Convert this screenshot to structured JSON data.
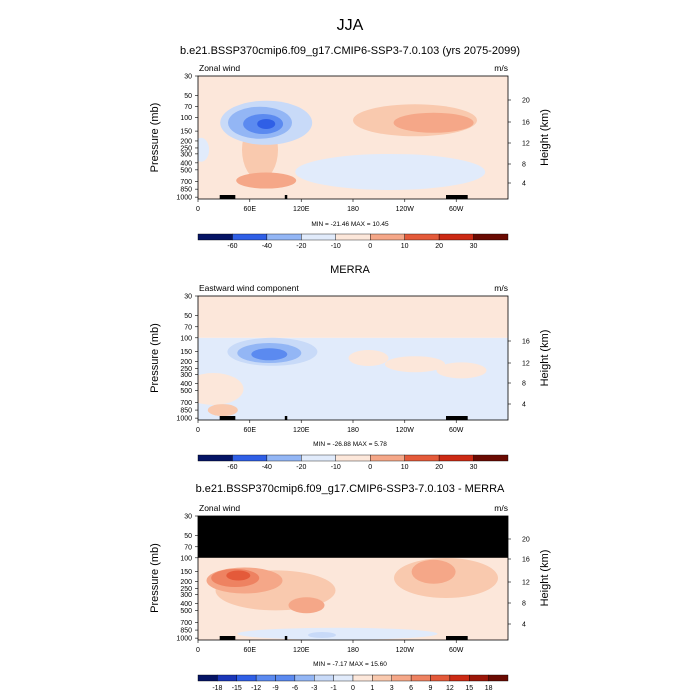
{
  "suptitle": "JJA",
  "y_axis_label": "Pressure (mb)",
  "y2_axis_label": "Height (km)",
  "pressure_ticks": [
    "30",
    "50",
    "70",
    "100",
    "150",
    "200",
    "250",
    "300",
    "400",
    "500",
    "700",
    "850",
    "1000"
  ],
  "colors": {
    "ocean": "#ffffff",
    "blue_scale": [
      "#051465",
      "#1a36b8",
      "#2f5fe6",
      "#5b8af0",
      "#93b6f5",
      "#c8daf8",
      "#e1ebfb"
    ],
    "red_scale": [
      "#fce7da",
      "#f9c9ae",
      "#f5a788",
      "#ee8261",
      "#e45a3a",
      "#cc2a14",
      "#9b1608",
      "#6a0a02"
    ],
    "missing": "#000000",
    "terrain": "#000000"
  },
  "chart_data": [
    {
      "type": "heatmap",
      "title": "b.e21.BSSP370cmip6.f09_g17.CMIP6-SSP3-7.0.103 (yrs 2075-2099)",
      "left_label": "Zonal wind",
      "right_label": "m/s",
      "x_ticks": [
        "0",
        "60E",
        "120E",
        "180",
        "120W",
        "60W"
      ],
      "y_ticks": [
        "30",
        "50",
        "70",
        "100",
        "150",
        "200",
        "250",
        "300",
        "400",
        "500",
        "700",
        "850",
        "1000"
      ],
      "height_ticks": [
        "20",
        "16",
        "12",
        "8",
        "4"
      ],
      "stats": "MIN = -21.46  MAX = 10.45",
      "colorbar_ticks": [
        "-60",
        "-40",
        "-20",
        "-10",
        "0",
        "10",
        "20",
        "30"
      ],
      "units": "m/s"
    },
    {
      "type": "heatmap",
      "title": "MERRA",
      "left_label": "Eastward wind component",
      "right_label": "m/s",
      "x_ticks": [
        "0",
        "60E",
        "120E",
        "180",
        "120W",
        "60W"
      ],
      "y_ticks": [
        "30",
        "50",
        "70",
        "100",
        "150",
        "200",
        "250",
        "300",
        "400",
        "500",
        "700",
        "850",
        "1000"
      ],
      "height_ticks": [
        "16",
        "12",
        "8",
        "4"
      ],
      "stats": "MIN = -26.88  MAX =  5.78",
      "colorbar_ticks": [
        "-60",
        "-40",
        "-20",
        "-10",
        "0",
        "10",
        "20",
        "30"
      ],
      "units": "m/s"
    },
    {
      "type": "heatmap",
      "title": "b.e21.BSSP370cmip6.f09_g17.CMIP6-SSP3-7.0.103 - MERRA",
      "left_label": "Zonal wind",
      "right_label": "m/s",
      "x_ticks": [
        "0",
        "60E",
        "120E",
        "180",
        "120W",
        "60W"
      ],
      "y_ticks": [
        "30",
        "50",
        "70",
        "100",
        "150",
        "200",
        "250",
        "300",
        "400",
        "500",
        "700",
        "850",
        "1000"
      ],
      "height_ticks": [
        "20",
        "16",
        "12",
        "8",
        "4"
      ],
      "stats": "MIN = -7.17  MAX = 15.60",
      "colorbar_ticks": [
        "-18",
        "-15",
        "-12",
        "-9",
        "-6",
        "-3",
        "-1",
        "0",
        "1",
        "3",
        "6",
        "9",
        "12",
        "15",
        "18"
      ],
      "units": "m/s"
    }
  ]
}
